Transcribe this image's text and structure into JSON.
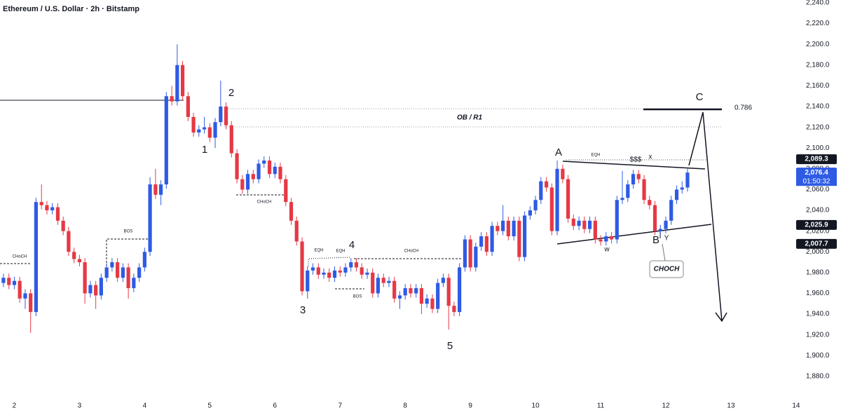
{
  "chart_data": {
    "type": "candlestick",
    "title": "Ethereum / U.S. Dollar · 2h · Bitstamp",
    "xlim": [
      1.78,
      13.99
    ],
    "xticks": [
      2,
      3,
      4,
      5,
      6,
      7,
      8,
      9,
      10,
      11,
      12,
      13,
      14
    ],
    "ylim": [
      1861,
      2242.7
    ],
    "yticks": [
      {
        "value": 1880,
        "label": "1,880.0"
      },
      {
        "value": 1900,
        "label": "1,900.0"
      },
      {
        "value": 1920,
        "label": "1,920.0"
      },
      {
        "value": 1940,
        "label": "1,940.0"
      },
      {
        "value": 1960,
        "label": "1,960.0"
      },
      {
        "value": 1980,
        "label": "1,980.0"
      },
      {
        "value": 2000,
        "label": "2,000.0"
      },
      {
        "value": 2020,
        "label": "2,020.0"
      },
      {
        "value": 2040,
        "label": "2,040.0"
      },
      {
        "value": 2060,
        "label": "2,060.0"
      },
      {
        "value": 2080,
        "label": "2,080.0"
      },
      {
        "value": 2100,
        "label": "2,100.0"
      },
      {
        "value": 2120,
        "label": "2,120.0"
      },
      {
        "value": 2140,
        "label": "2,140.0"
      },
      {
        "value": 2160,
        "label": "2,160.0"
      },
      {
        "value": 2180,
        "label": "2,180.0"
      },
      {
        "value": 2200,
        "label": "2,200.0"
      },
      {
        "value": 2220,
        "label": "2,220.0"
      },
      {
        "value": 2240,
        "label": "2,240.0"
      }
    ],
    "grid": false,
    "series": [
      {
        "up_color": "#2e5be4",
        "down_color": "#e53945",
        "x": [
          1.833,
          1.917,
          2,
          2.083,
          2.167,
          2.25,
          2.333,
          2.417,
          2.5,
          2.583,
          2.667,
          2.75,
          2.833,
          2.917,
          3,
          3.083,
          3.167,
          3.25,
          3.333,
          3.417,
          3.5,
          3.583,
          3.667,
          3.75,
          3.833,
          3.917,
          4,
          4.083,
          4.167,
          4.25,
          4.333,
          4.417,
          4.5,
          4.583,
          4.667,
          4.75,
          4.833,
          4.917,
          5,
          5.083,
          5.167,
          5.25,
          5.333,
          5.417,
          5.5,
          5.583,
          5.667,
          5.75,
          5.833,
          5.917,
          6,
          6.083,
          6.167,
          6.25,
          6.333,
          6.417,
          6.5,
          6.583,
          6.667,
          6.75,
          6.833,
          6.917,
          7,
          7.083,
          7.167,
          7.25,
          7.333,
          7.417,
          7.5,
          7.583,
          7.667,
          7.75,
          7.833,
          7.917,
          8,
          8.083,
          8.167,
          8.25,
          8.333,
          8.417,
          8.5,
          8.583,
          8.667,
          8.75,
          8.833,
          8.917,
          9,
          9.083,
          9.167,
          9.25,
          9.333,
          9.417,
          9.5,
          9.583,
          9.667,
          9.75,
          9.833,
          9.917,
          10,
          10.083,
          10.167,
          10.25,
          10.333,
          10.417,
          10.5,
          10.583,
          10.667,
          10.75,
          10.833,
          10.917,
          11,
          11.083,
          11.167,
          11.25,
          11.333,
          11.417,
          11.5,
          11.583,
          11.667,
          11.75,
          11.833,
          11.917,
          12,
          12.083,
          12.167,
          12.25,
          12.333
        ],
        "open": [
          1970,
          1975,
          1968,
          1972,
          1955,
          1960,
          1942,
          2048,
          2045,
          2040,
          2043,
          2030,
          2020,
          2000,
          1993,
          1990,
          1960,
          1968,
          1958,
          1975,
          1985,
          1990,
          1975,
          1985,
          1965,
          1975,
          1985,
          2000,
          2065,
          2055,
          2065,
          2150,
          2145,
          2180,
          2150,
          2130,
          2115,
          2118,
          2120,
          2110,
          2125,
          2140,
          2122,
          2095,
          2070,
          2060,
          2075,
          2070,
          2085,
          2088,
          2075,
          2082,
          2070,
          2048,
          2030,
          2010,
          1962,
          1982,
          1985,
          1978,
          1980,
          1975,
          1982,
          1980,
          1985,
          1990,
          1985,
          1978,
          1980,
          1960,
          1975,
          1970,
          1972,
          1955,
          1958,
          1965,
          1960,
          1965,
          1950,
          1955,
          1945,
          1970,
          1975,
          1948,
          1942,
          1985,
          2012,
          1985,
          2005,
          2015,
          2000,
          2025,
          2020,
          2030,
          2015,
          2030,
          1995,
          2035,
          2040,
          2050,
          2068,
          2062,
          2020,
          2080,
          2070,
          2032,
          2025,
          2030,
          2022,
          2030,
          2012,
          2010,
          2015,
          2012,
          2050,
          2052,
          2065,
          2075,
          2070,
          2050,
          2045,
          2020,
          2022,
          2030,
          2050,
          2060,
          2062
        ],
        "high": [
          1979,
          1979,
          1976,
          1976,
          1964,
          1964,
          2052,
          2065,
          2049,
          2047,
          2047,
          2034,
          2024,
          2004,
          1997,
          1994,
          1972,
          1972,
          1979,
          1989,
          1994,
          1994,
          1989,
          1989,
          1979,
          1989,
          2004,
          2072,
          2080,
          2069,
          2154,
          2160,
          2200,
          2184,
          2154,
          2134,
          2122,
          2130,
          2124,
          2129,
          2165,
          2144,
          2126,
          2099,
          2074,
          2079,
          2079,
          2089,
          2092,
          2092,
          2086,
          2086,
          2074,
          2052,
          2034,
          2014,
          1986,
          1989,
          1989,
          1984,
          1984,
          1986,
          1986,
          1989,
          1994,
          1994,
          1989,
          1984,
          1984,
          1979,
          1979,
          1976,
          1976,
          1962,
          1969,
          1969,
          1969,
          1969,
          1959,
          1959,
          1974,
          1979,
          1979,
          1952,
          1989,
          2016,
          2016,
          2009,
          2019,
          2019,
          2029,
          2029,
          2045,
          2034,
          2034,
          2034,
          2039,
          2044,
          2054,
          2072,
          2072,
          2066,
          2088,
          2084,
          2074,
          2036,
          2034,
          2034,
          2034,
          2034,
          2016,
          2019,
          2019,
          2054,
          2078,
          2069,
          2079,
          2079,
          2074,
          2054,
          2049,
          2026,
          2034,
          2054,
          2064,
          2068,
          2080
        ],
        "low": [
          1966,
          1964,
          1964,
          1951,
          1945,
          1922,
          1938,
          2041,
          2036,
          2036,
          2026,
          2016,
          1996,
          1989,
          1986,
          1950,
          1956,
          1945,
          1954,
          1971,
          1981,
          1971,
          1971,
          1955,
          1961,
          1971,
          1981,
          1996,
          2051,
          2045,
          2061,
          2141,
          2141,
          2146,
          2126,
          2111,
          2111,
          2114,
          2106,
          2100,
          2121,
          2118,
          2091,
          2066,
          2056,
          2056,
          2066,
          2066,
          2081,
          2071,
          2071,
          2066,
          2044,
          2026,
          2006,
          1958,
          1955,
          1978,
          1974,
          1974,
          1971,
          1971,
          1976,
          1976,
          1981,
          1981,
          1974,
          1974,
          1956,
          1956,
          1966,
          1966,
          1951,
          1945,
          1954,
          1956,
          1956,
          1940,
          1946,
          1941,
          1941,
          1966,
          1925,
          1938,
          1938,
          1981,
          1981,
          1981,
          2001,
          1996,
          1996,
          2016,
          2016,
          2011,
          2011,
          1991,
          1991,
          2031,
          2036,
          2046,
          2058,
          2016,
          2016,
          2066,
          2028,
          2021,
          2021,
          2018,
          2018,
          2008,
          2006,
          2006,
          2008,
          2008,
          2046,
          2048,
          2061,
          2066,
          2046,
          2041,
          2016,
          2016,
          2018,
          2026,
          2046,
          2056,
          2058
        ],
        "close": [
          1975,
          1968,
          1972,
          1955,
          1960,
          1942,
          2048,
          2045,
          2040,
          2043,
          2030,
          2020,
          2000,
          1993,
          1990,
          1960,
          1968,
          1958,
          1975,
          1985,
          1990,
          1975,
          1985,
          1965,
          1975,
          1985,
          2000,
          2065,
          2055,
          2065,
          2150,
          2145,
          2180,
          2150,
          2130,
          2115,
          2118,
          2120,
          2110,
          2125,
          2140,
          2122,
          2095,
          2070,
          2060,
          2075,
          2070,
          2085,
          2088,
          2075,
          2082,
          2070,
          2048,
          2030,
          2010,
          1962,
          1982,
          1985,
          1978,
          1980,
          1975,
          1982,
          1980,
          1985,
          1990,
          1985,
          1978,
          1980,
          1960,
          1975,
          1970,
          1972,
          1955,
          1958,
          1965,
          1960,
          1965,
          1950,
          1955,
          1945,
          1970,
          1975,
          1948,
          1942,
          1985,
          2012,
          1985,
          2005,
          2015,
          2000,
          2025,
          2020,
          2030,
          2015,
          2030,
          1995,
          2035,
          2040,
          2050,
          2068,
          2062,
          2020,
          2080,
          2070,
          2032,
          2025,
          2030,
          2022,
          2030,
          2012,
          2010,
          2015,
          2012,
          2050,
          2052,
          2065,
          2075,
          2070,
          2050,
          2045,
          2020,
          2022,
          2030,
          2050,
          2060,
          2062,
          2076.4
        ]
      }
    ],
    "price_tags": [
      {
        "value": 2089.3,
        "label": "2,089.3",
        "color": "#131722"
      },
      {
        "value": 2076.4,
        "label": "2,076.4",
        "color": "#2e5be4"
      },
      {
        "value": 2025.9,
        "label": "2,025.9",
        "color": "#131722"
      },
      {
        "value": 2007.7,
        "label": "2,007.7",
        "color": "#131722"
      }
    ],
    "countdown": "01:50:32",
    "annotations": [
      "1",
      "2",
      "3",
      "4",
      "5",
      "A",
      "B",
      "C",
      "w",
      "x",
      "Y",
      "$$$",
      "EQH",
      "EQH",
      "EQH",
      "CHoCH",
      "CHoCH",
      "CHoCH",
      "BOS",
      "BOS",
      "OB / R1",
      "0.786",
      "CHOCH"
    ]
  }
}
